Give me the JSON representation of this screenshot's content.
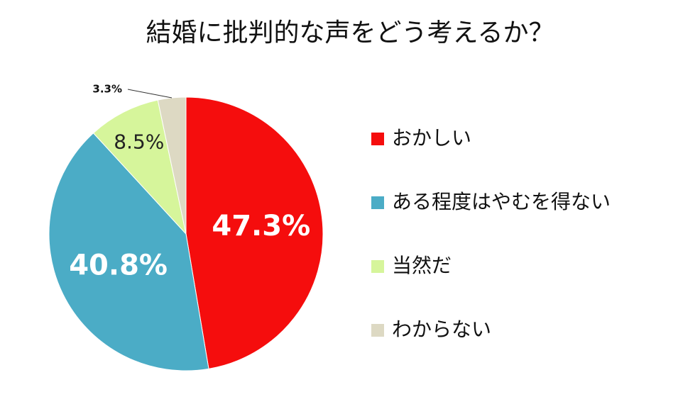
{
  "chart_data": {
    "type": "pie",
    "title": "結婚に批判的な声をどう考えるか？",
    "categories": [
      "おかしい",
      "ある程度はやむを得ない",
      "当然だ",
      "わからない"
    ],
    "values": [
      47.3,
      40.8,
      8.5,
      3.3
    ],
    "value_labels": [
      "47.3%",
      "40.8%",
      "8.5%",
      "3.3%"
    ],
    "colors": [
      "#f50d0d",
      "#4bacc6",
      "#d6f59b",
      "#ddd9c3"
    ],
    "legend": "right"
  }
}
